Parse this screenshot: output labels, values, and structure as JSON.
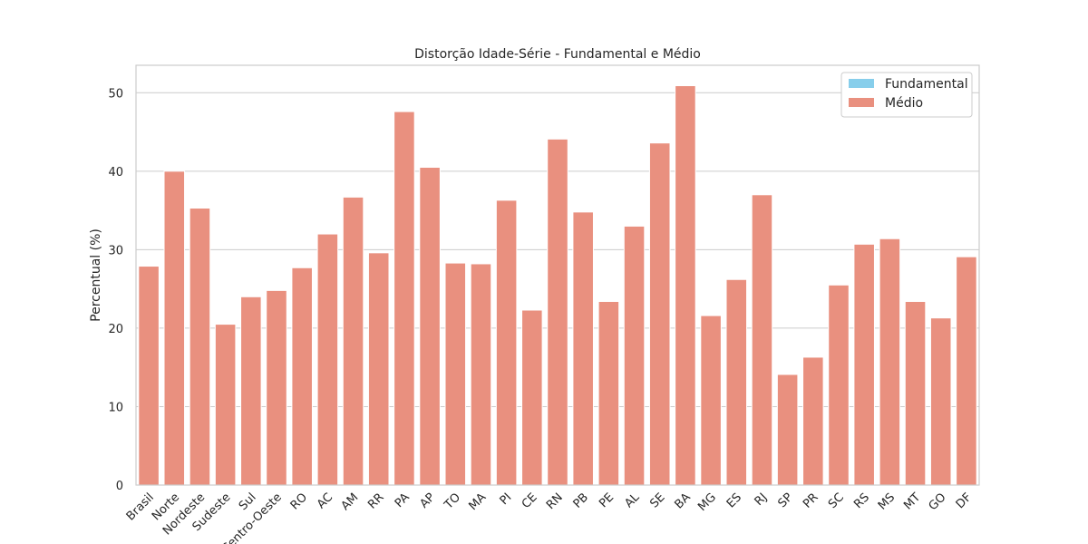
{
  "chart_data": {
    "type": "bar",
    "title": "Distorção Idade-Série - Fundamental e Médio",
    "xlabel": "",
    "ylabel": "Percentual (%)",
    "ylim": [
      0,
      53.5
    ],
    "yticks": [
      0,
      10,
      20,
      30,
      40,
      50
    ],
    "grid": "horizontal",
    "legend_position": "top-right",
    "categories": [
      "Brasil",
      "Norte",
      "Nordeste",
      "Sudeste",
      "Sul",
      "Centro-Oeste",
      "RO",
      "AC",
      "AM",
      "RR",
      "PA",
      "AP",
      "TO",
      "MA",
      "PI",
      "CE",
      "RN",
      "PB",
      "PE",
      "AL",
      "SE",
      "BA",
      "MG",
      "ES",
      "RJ",
      "SP",
      "PR",
      "SC",
      "RS",
      "MS",
      "MT",
      "GO",
      "DF"
    ],
    "series": [
      {
        "name": "Fundamental",
        "color": "#87CEEB",
        "values": [
          0,
          0,
          0,
          0,
          0,
          0,
          0,
          0,
          0,
          0,
          0,
          0,
          0,
          0,
          0,
          0,
          0,
          0,
          0,
          0,
          0,
          0,
          0,
          0,
          0,
          0,
          0,
          0,
          0,
          0,
          0,
          0,
          0
        ]
      },
      {
        "name": "Médio",
        "color": "#E9907F",
        "values": [
          27.9,
          40.0,
          35.3,
          20.5,
          24.0,
          24.8,
          27.7,
          32.0,
          36.7,
          29.6,
          47.6,
          40.5,
          28.3,
          28.2,
          36.3,
          22.3,
          44.1,
          34.8,
          23.4,
          33.0,
          43.6,
          50.9,
          21.6,
          26.2,
          37.0,
          14.1,
          16.3,
          25.5,
          30.7,
          31.4,
          23.4,
          21.3,
          29.1
        ]
      }
    ]
  }
}
